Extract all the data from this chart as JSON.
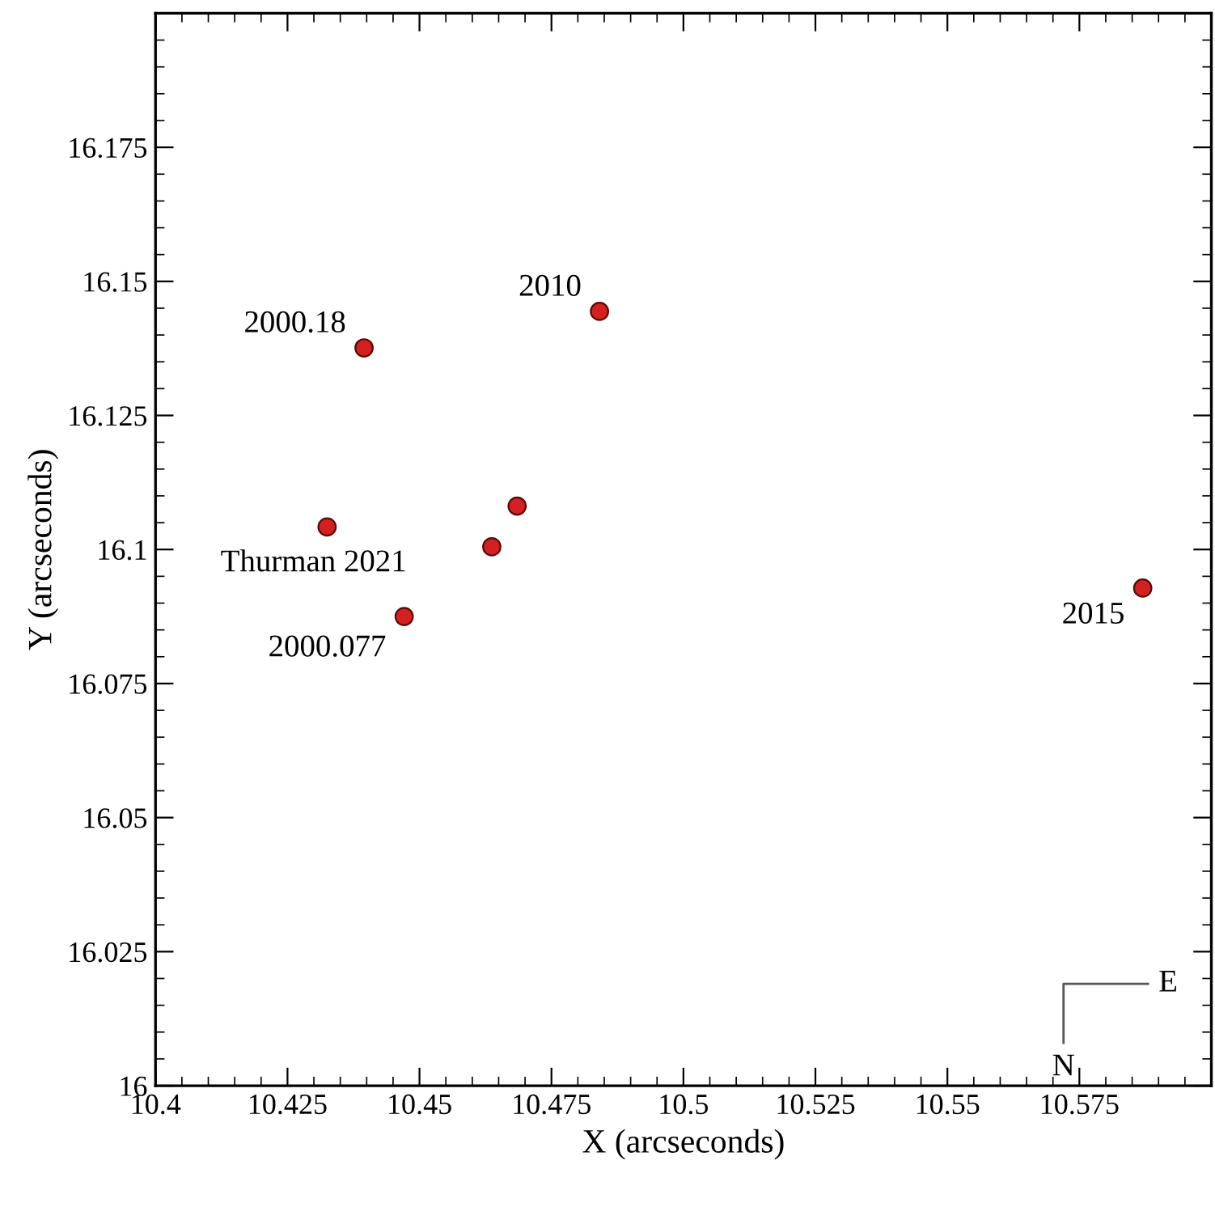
{
  "chart_data": {
    "type": "scatter",
    "xlabel": "X (arcseconds)",
    "ylabel": "Y (arcseconds)",
    "x": [
      10.4395,
      10.4841,
      10.4325,
      10.4685,
      10.4637,
      10.4471,
      10.587
    ],
    "values": [
      16.1376,
      16.1444,
      16.1042,
      16.1081,
      16.1005,
      16.0875,
      16.0928
    ],
    "color": "#d42020",
    "marker": "circle",
    "grid": false,
    "xlim": [
      10.4,
      10.6
    ],
    "ylim": [
      16,
      16.2
    ],
    "xticks": [
      10.4,
      10.425,
      10.45,
      10.475,
      10.5,
      10.525,
      10.55,
      10.575,
      {
        "value": 10.6,
        "label": null
      }
    ],
    "yticks": [
      16,
      16.025,
      16.05,
      16.075,
      16.1,
      16.125,
      16.15,
      16.175,
      {
        "value": 16.2,
        "label": null
      }
    ],
    "annotations": [
      {
        "text": "2000.18",
        "x": 10.4395,
        "y": 16.1376
      },
      {
        "text": "2010",
        "x": 10.4841,
        "y": 16.1444
      },
      {
        "text": "Thurman 2021",
        "x": 10.4325,
        "y": 16.1042
      },
      {
        "text": "2000.077",
        "x": 10.4471,
        "y": 16.0875
      },
      {
        "text": "2015",
        "x": 10.587,
        "y": 16.0928
      },
      "E",
      "N"
    ]
  }
}
